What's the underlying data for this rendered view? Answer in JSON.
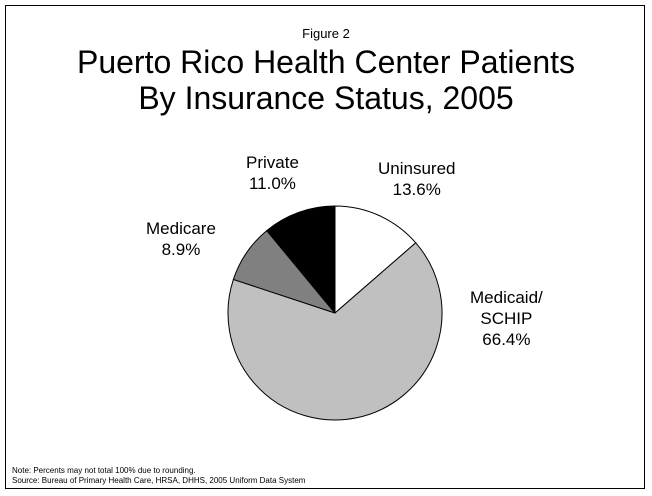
{
  "figure_label": "Figure 2",
  "title_lines": [
    "Puerto Rico Health Center Patients",
    "By Insurance Status, 2005"
  ],
  "chart_data": {
    "type": "pie",
    "slices": [
      {
        "label_lines": [
          "Uninsured"
        ],
        "value": 13.6,
        "value_text": "13.6%",
        "color": "#ffffff"
      },
      {
        "label_lines": [
          "Medicaid/",
          "SCHIP"
        ],
        "value": 66.4,
        "value_text": "66.4%",
        "color": "#c0c0c0"
      },
      {
        "label_lines": [
          "Medicare"
        ],
        "value": 8.9,
        "value_text": "8.9%",
        "color": "#808080"
      },
      {
        "label_lines": [
          "Private"
        ],
        "value": 11.0,
        "value_text": "11.0%",
        "color": "#000000"
      }
    ],
    "start_angle_deg": 0,
    "direction": "clockwise"
  },
  "notes": [
    "Note:  Percents may not total 100% due to rounding.",
    "Source:  Bureau of Primary Health Care, HRSA, DHHS, 2005 Uniform Data System"
  ]
}
